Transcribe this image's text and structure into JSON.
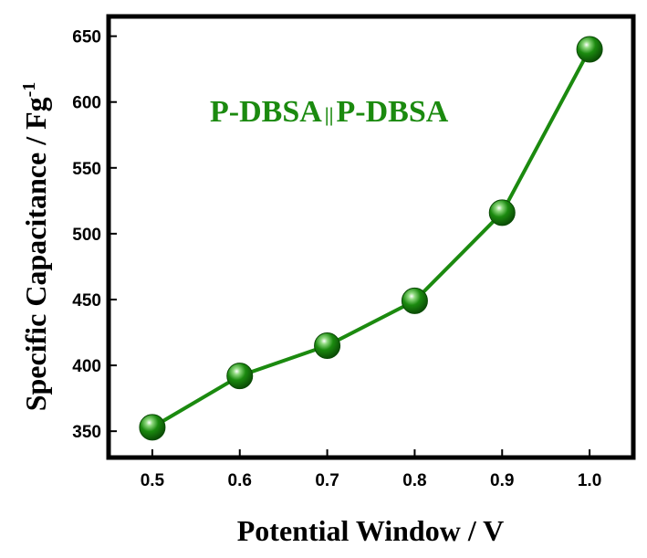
{
  "chart_data": {
    "type": "line",
    "title": "",
    "annotation": {
      "left": "P-DBSA",
      "separator": "||",
      "right": "P-DBSA"
    },
    "xlabel": "Potential Window / V",
    "ylabel": "Specific Capacitance / Fg",
    "ylabel_superscript": "-1",
    "x_ticks": [
      "0.5",
      "0.6",
      "0.7",
      "0.8",
      "0.9",
      "1.0"
    ],
    "y_ticks": [
      "350",
      "400",
      "450",
      "500",
      "550",
      "600",
      "650"
    ],
    "xlim": [
      0.45,
      1.05
    ],
    "ylim": [
      330,
      665
    ],
    "series": [
      {
        "x": [
          0.5,
          0.6,
          0.7,
          0.8,
          0.9,
          1.0
        ],
        "y": [
          353,
          392,
          415,
          449,
          516,
          640
        ]
      }
    ],
    "grid": false,
    "colors": {
      "line": "#1b8a0f",
      "marker": "#1b8a0f",
      "marker_dark": "#0a4a05",
      "annotation": "#1b8a0f"
    }
  }
}
